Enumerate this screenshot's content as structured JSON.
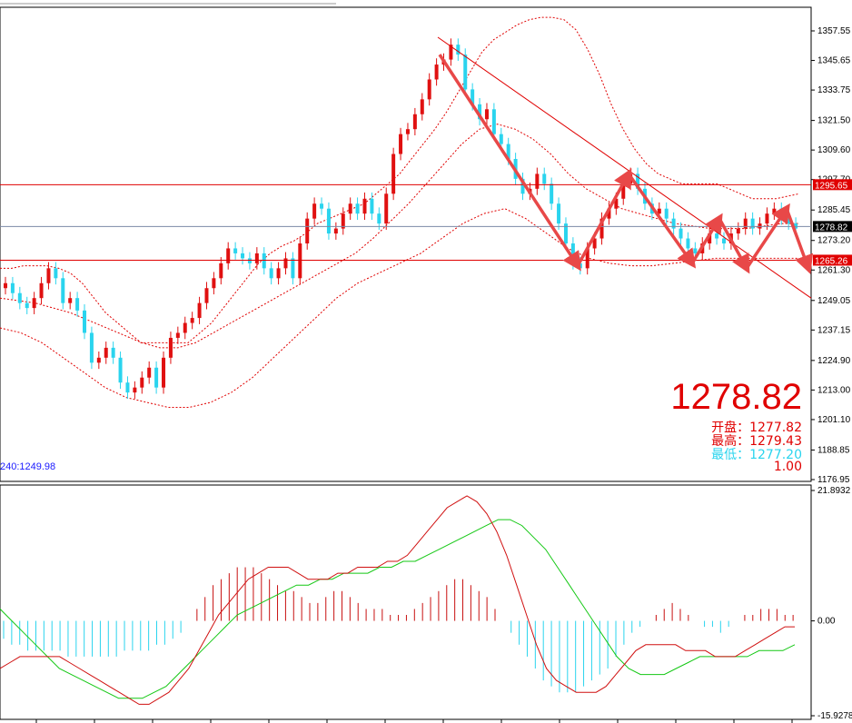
{
  "chart_data": [
    {
      "type": "candlestick",
      "price_axis_ticks": [
        "1357.55",
        "1345.65",
        "1333.75",
        "1321.50",
        "1309.60",
        "1297.70",
        "1285.45",
        "1273.20",
        "1261.30",
        "1249.05",
        "1237.15",
        "1224.90",
        "1213.00",
        "1201.10",
        "1188.85",
        "1176.95"
      ],
      "ylim": [
        1176.95,
        1357.55
      ],
      "horizontal_lines": [
        {
          "value": 1295.65,
          "label": "1295.65",
          "color": "#e00000"
        },
        {
          "value": 1278.82,
          "label": "1278.82",
          "color": "#000000"
        },
        {
          "value": 1265.26,
          "label": "1265.26",
          "color": "#e00000"
        }
      ],
      "current_price": "1278.82",
      "stats": [
        {
          "label": "开盘：",
          "value": "1277.82",
          "color": "#e00000"
        },
        {
          "label": "最高：",
          "value": "1279.43",
          "color": "#e00000"
        },
        {
          "label": "最低：",
          "value": "1277.20",
          "color": "#2ad4ee"
        },
        {
          "label": "",
          "value": "1.00",
          "color": "#e00000"
        }
      ],
      "ma_label": "240:1249.98",
      "candles_close": [
        1256,
        1252,
        1248,
        1246,
        1250,
        1256,
        1262,
        1258,
        1248,
        1250,
        1245,
        1236,
        1224,
        1226,
        1230,
        1226,
        1216,
        1212,
        1214,
        1218,
        1222,
        1214,
        1226,
        1234,
        1236,
        1240,
        1242,
        1248,
        1254,
        1258,
        1264,
        1270,
        1268,
        1266,
        1264,
        1268,
        1262,
        1258,
        1262,
        1266,
        1258,
        1272,
        1282,
        1288,
        1286,
        1276,
        1278,
        1284,
        1288,
        1284,
        1290,
        1284,
        1280,
        1292,
        1308,
        1316,
        1318,
        1324,
        1330,
        1338,
        1344,
        1346,
        1352,
        1348,
        1334,
        1328,
        1322,
        1326,
        1316,
        1312,
        1306,
        1298,
        1292,
        1294,
        1300,
        1296,
        1288,
        1280,
        1272,
        1264,
        1262,
        1270,
        1274,
        1282,
        1286,
        1290,
        1296,
        1300,
        1294,
        1288,
        1284,
        1286,
        1282,
        1278,
        1274,
        1270,
        1268,
        1272,
        1276,
        1274,
        1272,
        1276,
        1278,
        1282,
        1278,
        1280,
        1284,
        1286,
        1282,
        1280,
        1278
      ],
      "upper_band": [
        1262,
        1262,
        1263,
        1263,
        1263,
        1262,
        1260,
        1256,
        1250,
        1244,
        1240,
        1236,
        1232,
        1232,
        1232,
        1232,
        1232,
        1236,
        1240,
        1246,
        1252,
        1258,
        1264,
        1268,
        1271,
        1273,
        1276,
        1280,
        1282,
        1284,
        1286,
        1288,
        1292,
        1296,
        1300,
        1306,
        1312,
        1318,
        1325,
        1333,
        1341,
        1349,
        1354,
        1357,
        1360,
        1362,
        1363,
        1363,
        1362,
        1358,
        1350,
        1340,
        1328,
        1318,
        1310,
        1304,
        1300,
        1298,
        1296,
        1296,
        1296,
        1296,
        1294,
        1292,
        1290,
        1290,
        1290,
        1291,
        1292
      ],
      "middle_band": [
        1250,
        1249,
        1248,
        1246,
        1244,
        1241,
        1238,
        1235,
        1232,
        1230,
        1230,
        1232,
        1236,
        1240,
        1244,
        1248,
        1252,
        1256,
        1260,
        1264,
        1268,
        1274,
        1281,
        1288,
        1296,
        1304,
        1312,
        1318,
        1320,
        1318,
        1314,
        1308,
        1300,
        1294,
        1290,
        1286,
        1284,
        1282,
        1280,
        1279,
        1278,
        1278,
        1278,
        1279,
        1280,
        1280
      ],
      "lower_band": [
        1238,
        1236,
        1232,
        1226,
        1220,
        1214,
        1210,
        1208,
        1206,
        1206,
        1208,
        1212,
        1218,
        1226,
        1234,
        1242,
        1250,
        1256,
        1260,
        1264,
        1268,
        1274,
        1280,
        1284,
        1286,
        1282,
        1276,
        1270,
        1266,
        1264,
        1263,
        1263,
        1264,
        1265,
        1266,
        1266,
        1266,
        1266,
        1266
      ]
    },
    {
      "type": "macd",
      "ticks": [
        "21.8932",
        "0.00",
        "-15.9278"
      ],
      "ylim": [
        -15.9278,
        21.8932
      ],
      "histogram": [
        -3,
        -4,
        -4,
        -5,
        -5,
        -5,
        -5,
        -5,
        -6,
        -6,
        -6,
        -6,
        -6,
        -6,
        -6,
        -5,
        -5,
        -5,
        -5,
        -4,
        -4,
        -3,
        -2,
        0,
        2,
        4,
        6,
        7,
        8,
        9,
        9,
        9,
        8,
        7,
        6,
        5,
        5,
        4,
        3,
        3,
        4,
        5,
        5,
        4,
        3,
        2,
        2,
        2,
        1,
        1,
        1,
        2,
        3,
        4,
        5,
        6,
        7,
        7,
        6,
        5,
        4,
        2,
        0,
        -2,
        -4,
        -6,
        -8,
        -10,
        -11,
        -12,
        -12,
        -12,
        -11,
        -10,
        -9,
        -8,
        -6,
        -4,
        -2,
        -1,
        0,
        1,
        2,
        3,
        2,
        1,
        0,
        -1,
        -1,
        -2,
        -1,
        0,
        1,
        1,
        2,
        2,
        2,
        1,
        1
      ],
      "macd_line": [
        -8,
        -7,
        -6,
        -6,
        -6,
        -6,
        -6,
        -7,
        -8,
        -9,
        -10,
        -11,
        -12,
        -13,
        -14,
        -14,
        -13,
        -12,
        -10,
        -8,
        -5,
        -2,
        1,
        3,
        5,
        7,
        8,
        9,
        9,
        9,
        8,
        7,
        7,
        7,
        8,
        8,
        9,
        9,
        9,
        10,
        10,
        11,
        13,
        15,
        17,
        19,
        20,
        21,
        20,
        18,
        15,
        11,
        6,
        1,
        -4,
        -8,
        -10,
        -11,
        -12,
        -12,
        -12,
        -11,
        -9,
        -7,
        -5,
        -4,
        -4,
        -4,
        -4,
        -5,
        -5,
        -5,
        -6,
        -6,
        -6,
        -5,
        -4,
        -3,
        -2,
        -1,
        -1
      ],
      "signal_line": [
        2,
        0,
        -2,
        -4,
        -6,
        -8,
        -9,
        -10,
        -11,
        -12,
        -13,
        -13,
        -13,
        -12,
        -11,
        -9,
        -7,
        -5,
        -3,
        -1,
        1,
        2,
        3,
        4,
        5,
        6,
        6,
        7,
        7,
        8,
        8,
        8,
        9,
        9,
        10,
        10,
        11,
        12,
        13,
        14,
        15,
        16,
        17,
        17,
        16,
        14,
        12,
        9,
        6,
        3,
        0,
        -3,
        -6,
        -8,
        -9,
        -9,
        -9,
        -8,
        -7,
        -6,
        -6,
        -6,
        -6,
        -6,
        -5,
        -5,
        -5,
        -4
      ]
    }
  ]
}
